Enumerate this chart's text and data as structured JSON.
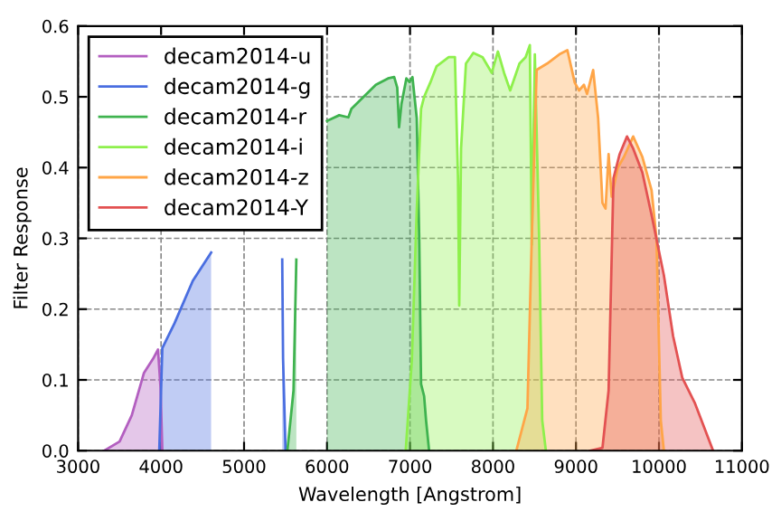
{
  "chart_data": {
    "type": "area",
    "xlabel": "Wavelength [Angstrom]",
    "ylabel": "Filter Response",
    "xlim": [
      3000,
      11000
    ],
    "xticks": [
      3000,
      4000,
      5000,
      6000,
      7000,
      8000,
      9000,
      10000,
      11000
    ],
    "ylim": [
      0,
      0.6
    ],
    "yticks": [
      {
        "value": 0,
        "label": "0.0"
      },
      0.1,
      0.2,
      0.3,
      0.4,
      0.5,
      0.6
    ],
    "grid": true,
    "legend": "top left",
    "line_style": "solid",
    "series": [
      {
        "name": "decam2014-u",
        "color": "#b35fc0",
        "x": [
          3316,
          3500,
          3647,
          3794,
          3904,
          3963,
          3993,
          4015
        ],
        "values": [
          0,
          0.013,
          0.05,
          0.11,
          0.13,
          0.143,
          0.09,
          0
        ]
      },
      {
        "name": "decam2014-g",
        "color": "#4a6ee0",
        "x": [
          3978,
          4015,
          4162,
          4382,
          4603,
          4676,
          5430,
          5460,
          5470,
          5500
        ],
        "values": [
          0,
          0.145,
          0.18,
          0.24,
          0.28,
          null,
          null,
          0.27,
          0.13,
          0
        ]
      },
      {
        "name": "decam2014-r",
        "color": "#3fb34f",
        "x": [
          5522,
          5596,
          5630,
          5706,
          5853,
          6000,
          6147,
          6257,
          6294,
          6441,
          6588,
          6735,
          6809,
          6846,
          6868,
          6897,
          6956,
          6993,
          7029,
          7081,
          7111,
          7133,
          7170,
          7193,
          7230
        ],
        "values": [
          0,
          0.085,
          0.27,
          null,
          null,
          0.466,
          0.474,
          0.471,
          0.483,
          0.5,
          0.517,
          0.526,
          0.528,
          0.513,
          0.457,
          0.49,
          0.526,
          0.521,
          0.528,
          0.47,
          0.3,
          0.094,
          0.077,
          0.043,
          0
        ]
      },
      {
        "name": "decam2014-i",
        "color": "#8ef04c",
        "x": [
          6948,
          7022,
          7081,
          7133,
          7170,
          7244,
          7319,
          7467,
          7541,
          7578,
          7593,
          7615,
          7674,
          7763,
          7874,
          7985,
          8059,
          8133,
          8207,
          8319,
          8393,
          8444,
          8467,
          8504,
          8556,
          8593,
          8637
        ],
        "values": [
          0,
          0.128,
          0.34,
          0.483,
          0.5,
          0.52,
          0.543,
          0.556,
          0.556,
          0.385,
          0.205,
          0.427,
          0.547,
          0.562,
          0.556,
          0.534,
          0.564,
          0.534,
          0.509,
          0.547,
          0.556,
          0.573,
          0.291,
          0.56,
          0.3,
          0.043,
          0
        ]
      },
      {
        "name": "decam2014-z",
        "color": "#ffa547",
        "x": [
          8281,
          8415,
          8467,
          8526,
          8652,
          8800,
          8896,
          8985,
          9037,
          9096,
          9133,
          9207,
          9267,
          9319,
          9356,
          9393,
          9430,
          9504,
          9578,
          9689,
          9800,
          9911,
          9970,
          10022,
          10059
        ],
        "values": [
          0,
          0.06,
          0.3,
          0.538,
          0.547,
          0.56,
          0.566,
          0.52,
          0.509,
          0.517,
          0.504,
          0.538,
          0.47,
          0.35,
          0.342,
          0.419,
          0.359,
          0.4,
          0.415,
          0.444,
          0.415,
          0.368,
          0.3,
          0.043,
          0
        ]
      },
      {
        "name": "decam2014-Y",
        "color": "#e35252",
        "x": [
          9170,
          9319,
          9393,
          9452,
          9526,
          9615,
          9689,
          9800,
          9911,
          10059,
          10170,
          10281,
          10430,
          10652
        ],
        "values": [
          0,
          0.004,
          0.085,
          0.385,
          0.419,
          0.444,
          0.427,
          0.393,
          0.333,
          0.248,
          0.162,
          0.103,
          0.068,
          0
        ]
      }
    ]
  }
}
